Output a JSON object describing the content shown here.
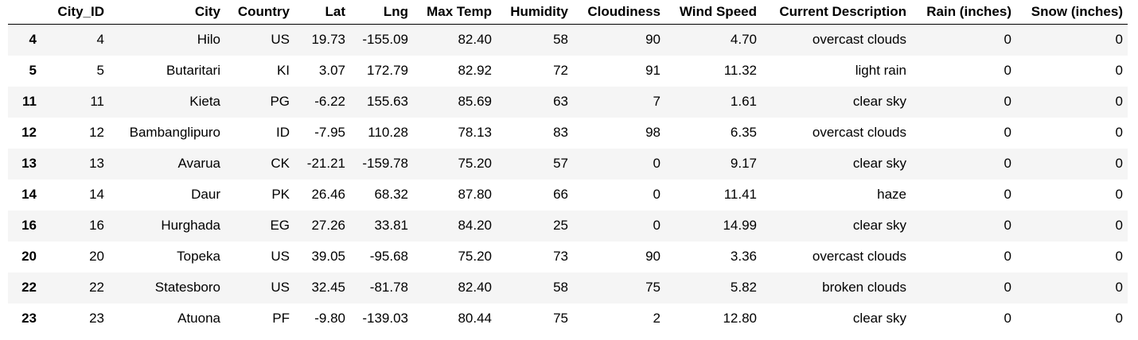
{
  "table": {
    "columns": [
      "",
      "City_ID",
      "City",
      "Country",
      "Lat",
      "Lng",
      "Max Temp",
      "Humidity",
      "Cloudiness",
      "Wind Speed",
      "Current Description",
      "Rain (inches)",
      "Snow (inches)"
    ],
    "rows": [
      {
        "index": "4",
        "cells": [
          "4",
          "Hilo",
          "US",
          "19.73",
          "-155.09",
          "82.40",
          "58",
          "90",
          "4.70",
          "overcast clouds",
          "0",
          "0"
        ]
      },
      {
        "index": "5",
        "cells": [
          "5",
          "Butaritari",
          "KI",
          "3.07",
          "172.79",
          "82.92",
          "72",
          "91",
          "11.32",
          "light rain",
          "0",
          "0"
        ]
      },
      {
        "index": "11",
        "cells": [
          "11",
          "Kieta",
          "PG",
          "-6.22",
          "155.63",
          "85.69",
          "63",
          "7",
          "1.61",
          "clear sky",
          "0",
          "0"
        ]
      },
      {
        "index": "12",
        "cells": [
          "12",
          "Bambanglipuro",
          "ID",
          "-7.95",
          "110.28",
          "78.13",
          "83",
          "98",
          "6.35",
          "overcast clouds",
          "0",
          "0"
        ]
      },
      {
        "index": "13",
        "cells": [
          "13",
          "Avarua",
          "CK",
          "-21.21",
          "-159.78",
          "75.20",
          "57",
          "0",
          "9.17",
          "clear sky",
          "0",
          "0"
        ]
      },
      {
        "index": "14",
        "cells": [
          "14",
          "Daur",
          "PK",
          "26.46",
          "68.32",
          "87.80",
          "66",
          "0",
          "11.41",
          "haze",
          "0",
          "0"
        ]
      },
      {
        "index": "16",
        "cells": [
          "16",
          "Hurghada",
          "EG",
          "27.26",
          "33.81",
          "84.20",
          "25",
          "0",
          "14.99",
          "clear sky",
          "0",
          "0"
        ]
      },
      {
        "index": "20",
        "cells": [
          "20",
          "Topeka",
          "US",
          "39.05",
          "-95.68",
          "75.20",
          "73",
          "90",
          "3.36",
          "overcast clouds",
          "0",
          "0"
        ]
      },
      {
        "index": "22",
        "cells": [
          "22",
          "Statesboro",
          "US",
          "32.45",
          "-81.78",
          "82.40",
          "58",
          "75",
          "5.82",
          "broken clouds",
          "0",
          "0"
        ]
      },
      {
        "index": "23",
        "cells": [
          "23",
          "Atuona",
          "PF",
          "-9.80",
          "-139.03",
          "80.44",
          "75",
          "2",
          "12.80",
          "clear sky",
          "0",
          "0"
        ]
      }
    ]
  }
}
